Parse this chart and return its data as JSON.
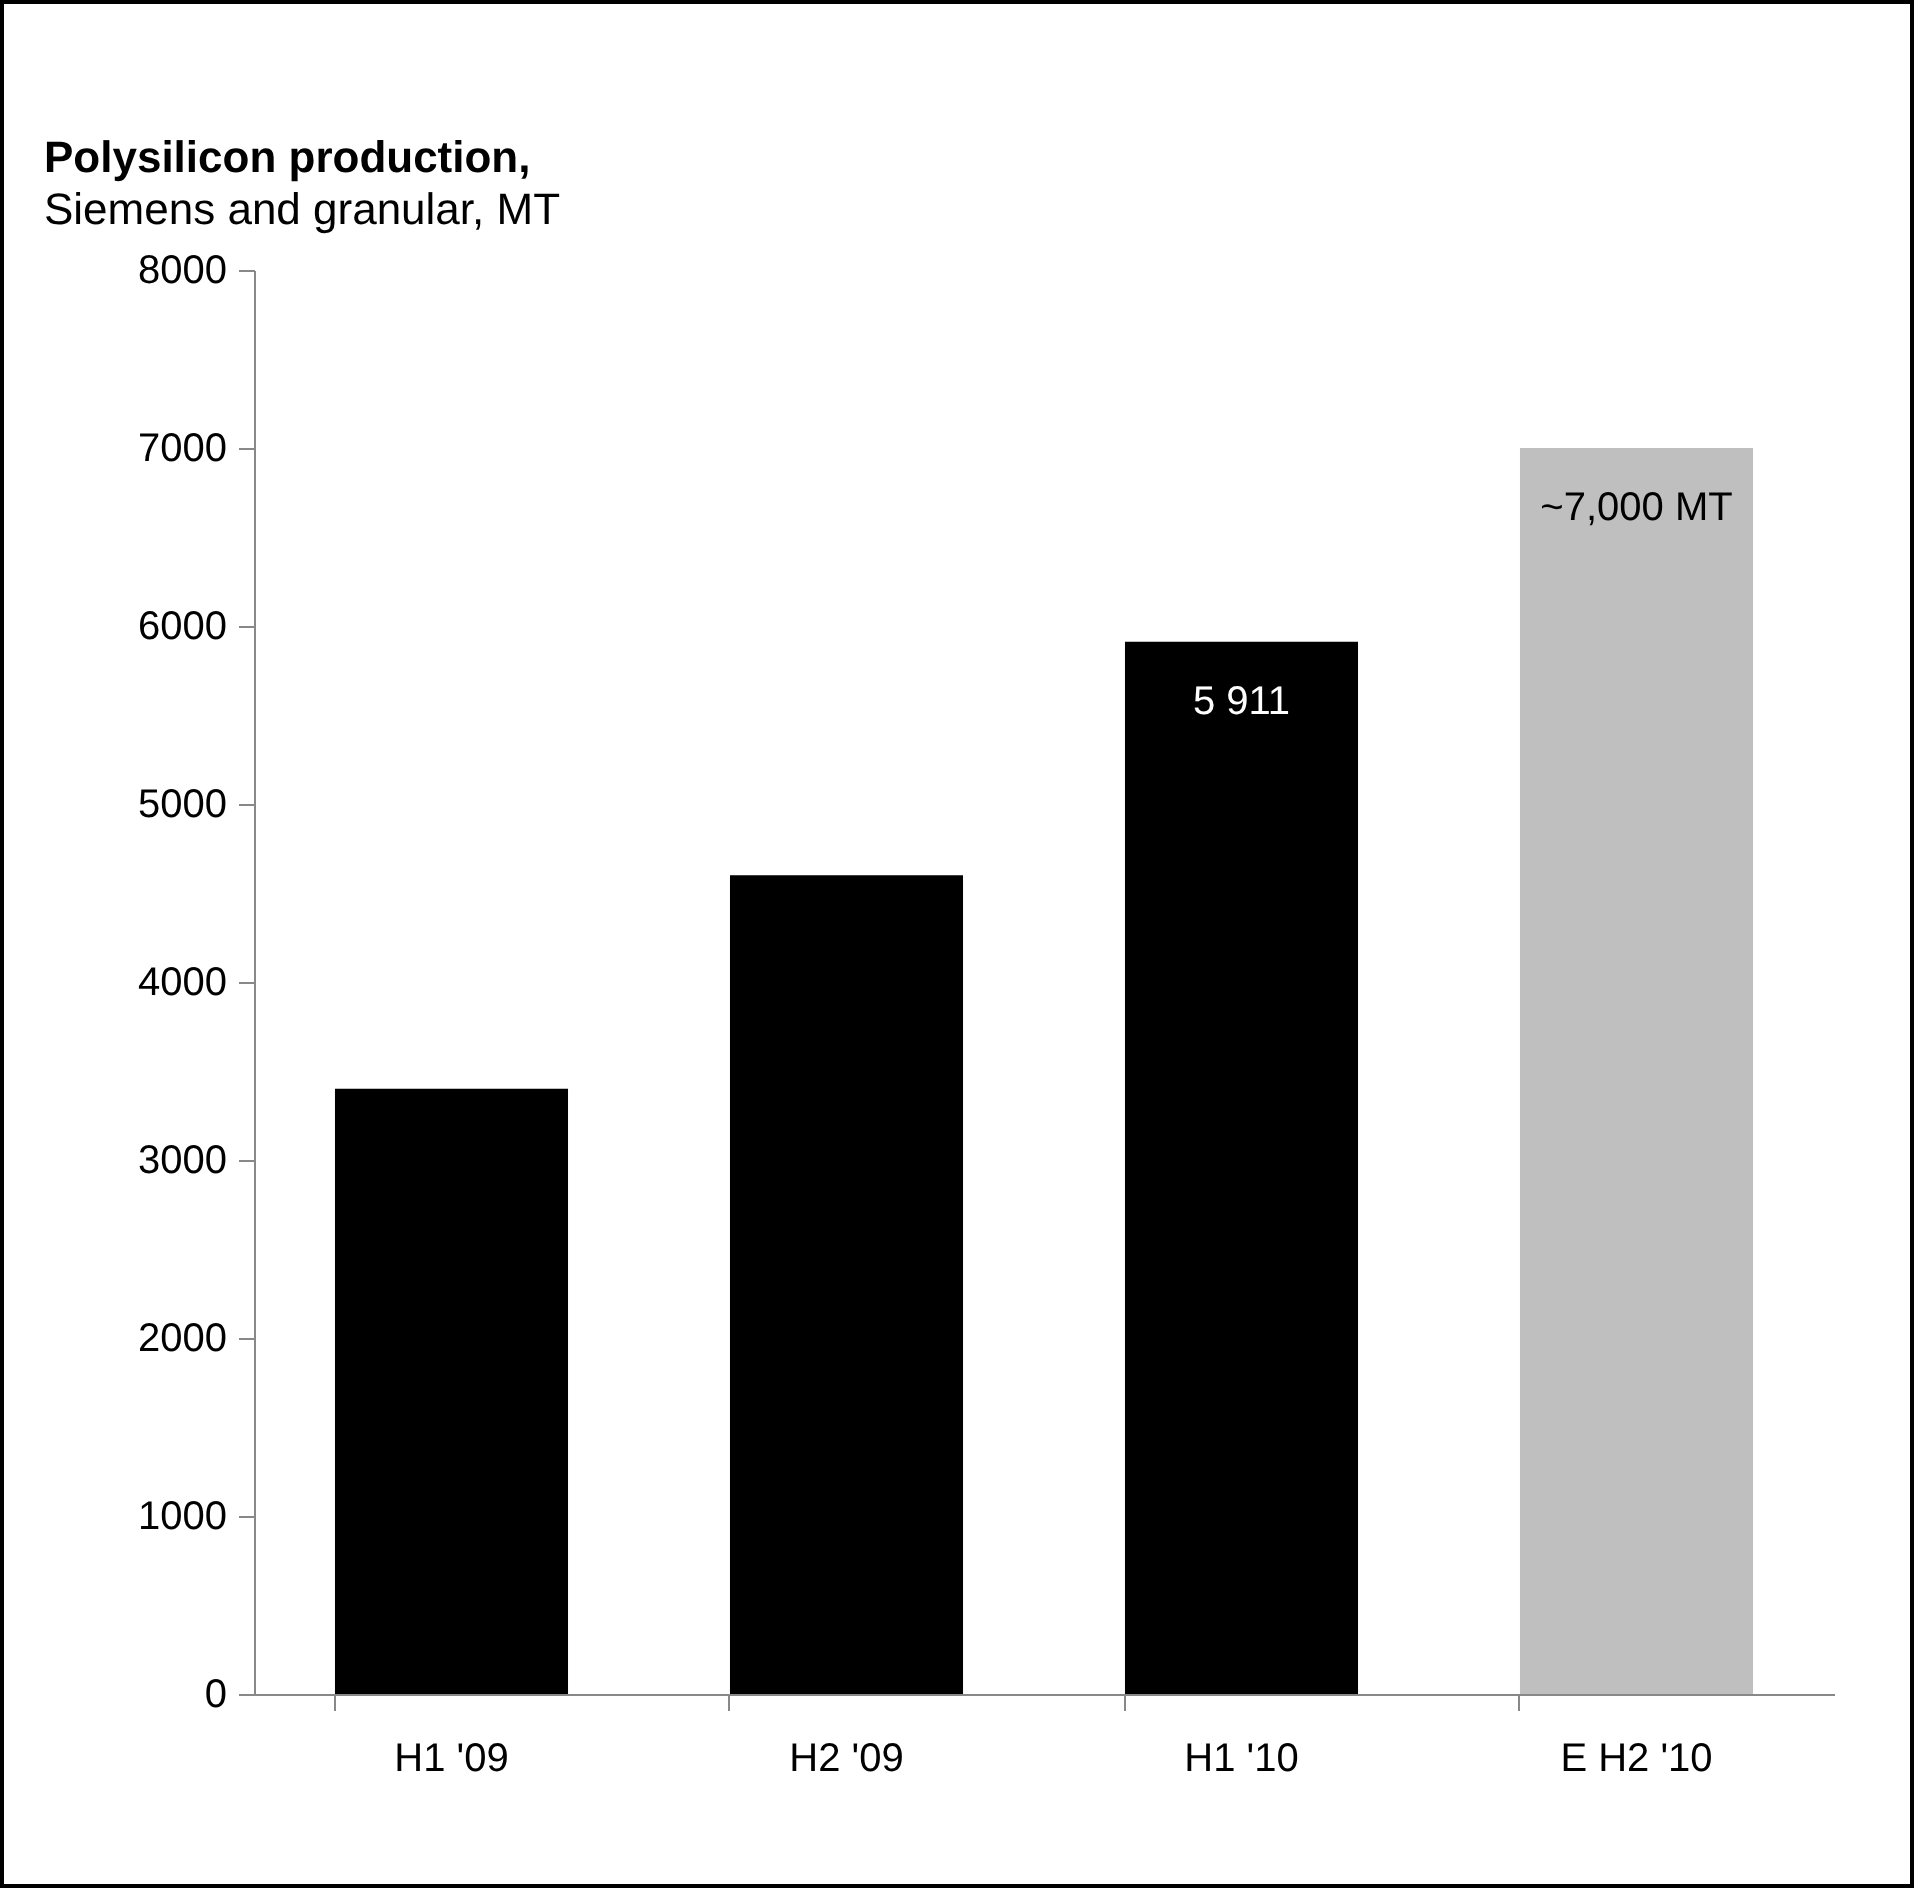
{
  "chart_data": {
    "type": "bar",
    "title": "Polysilicon production,",
    "subtitle": "Siemens and granular, MT",
    "categories": [
      "H1 '09",
      "H2 '09",
      "H1 '10",
      "E H2 '10"
    ],
    "values": [
      3400,
      4600,
      5911,
      7000
    ],
    "colors": [
      "#000000",
      "#000000",
      "#000000",
      "#bfbfbf"
    ],
    "value_labels": [
      null,
      null,
      "5 911",
      "~7,000 MT"
    ],
    "ylim": [
      0,
      8000
    ],
    "yticks": [
      0,
      1000,
      2000,
      3000,
      4000,
      5000,
      6000,
      7000,
      8000
    ],
    "grid": false
  }
}
